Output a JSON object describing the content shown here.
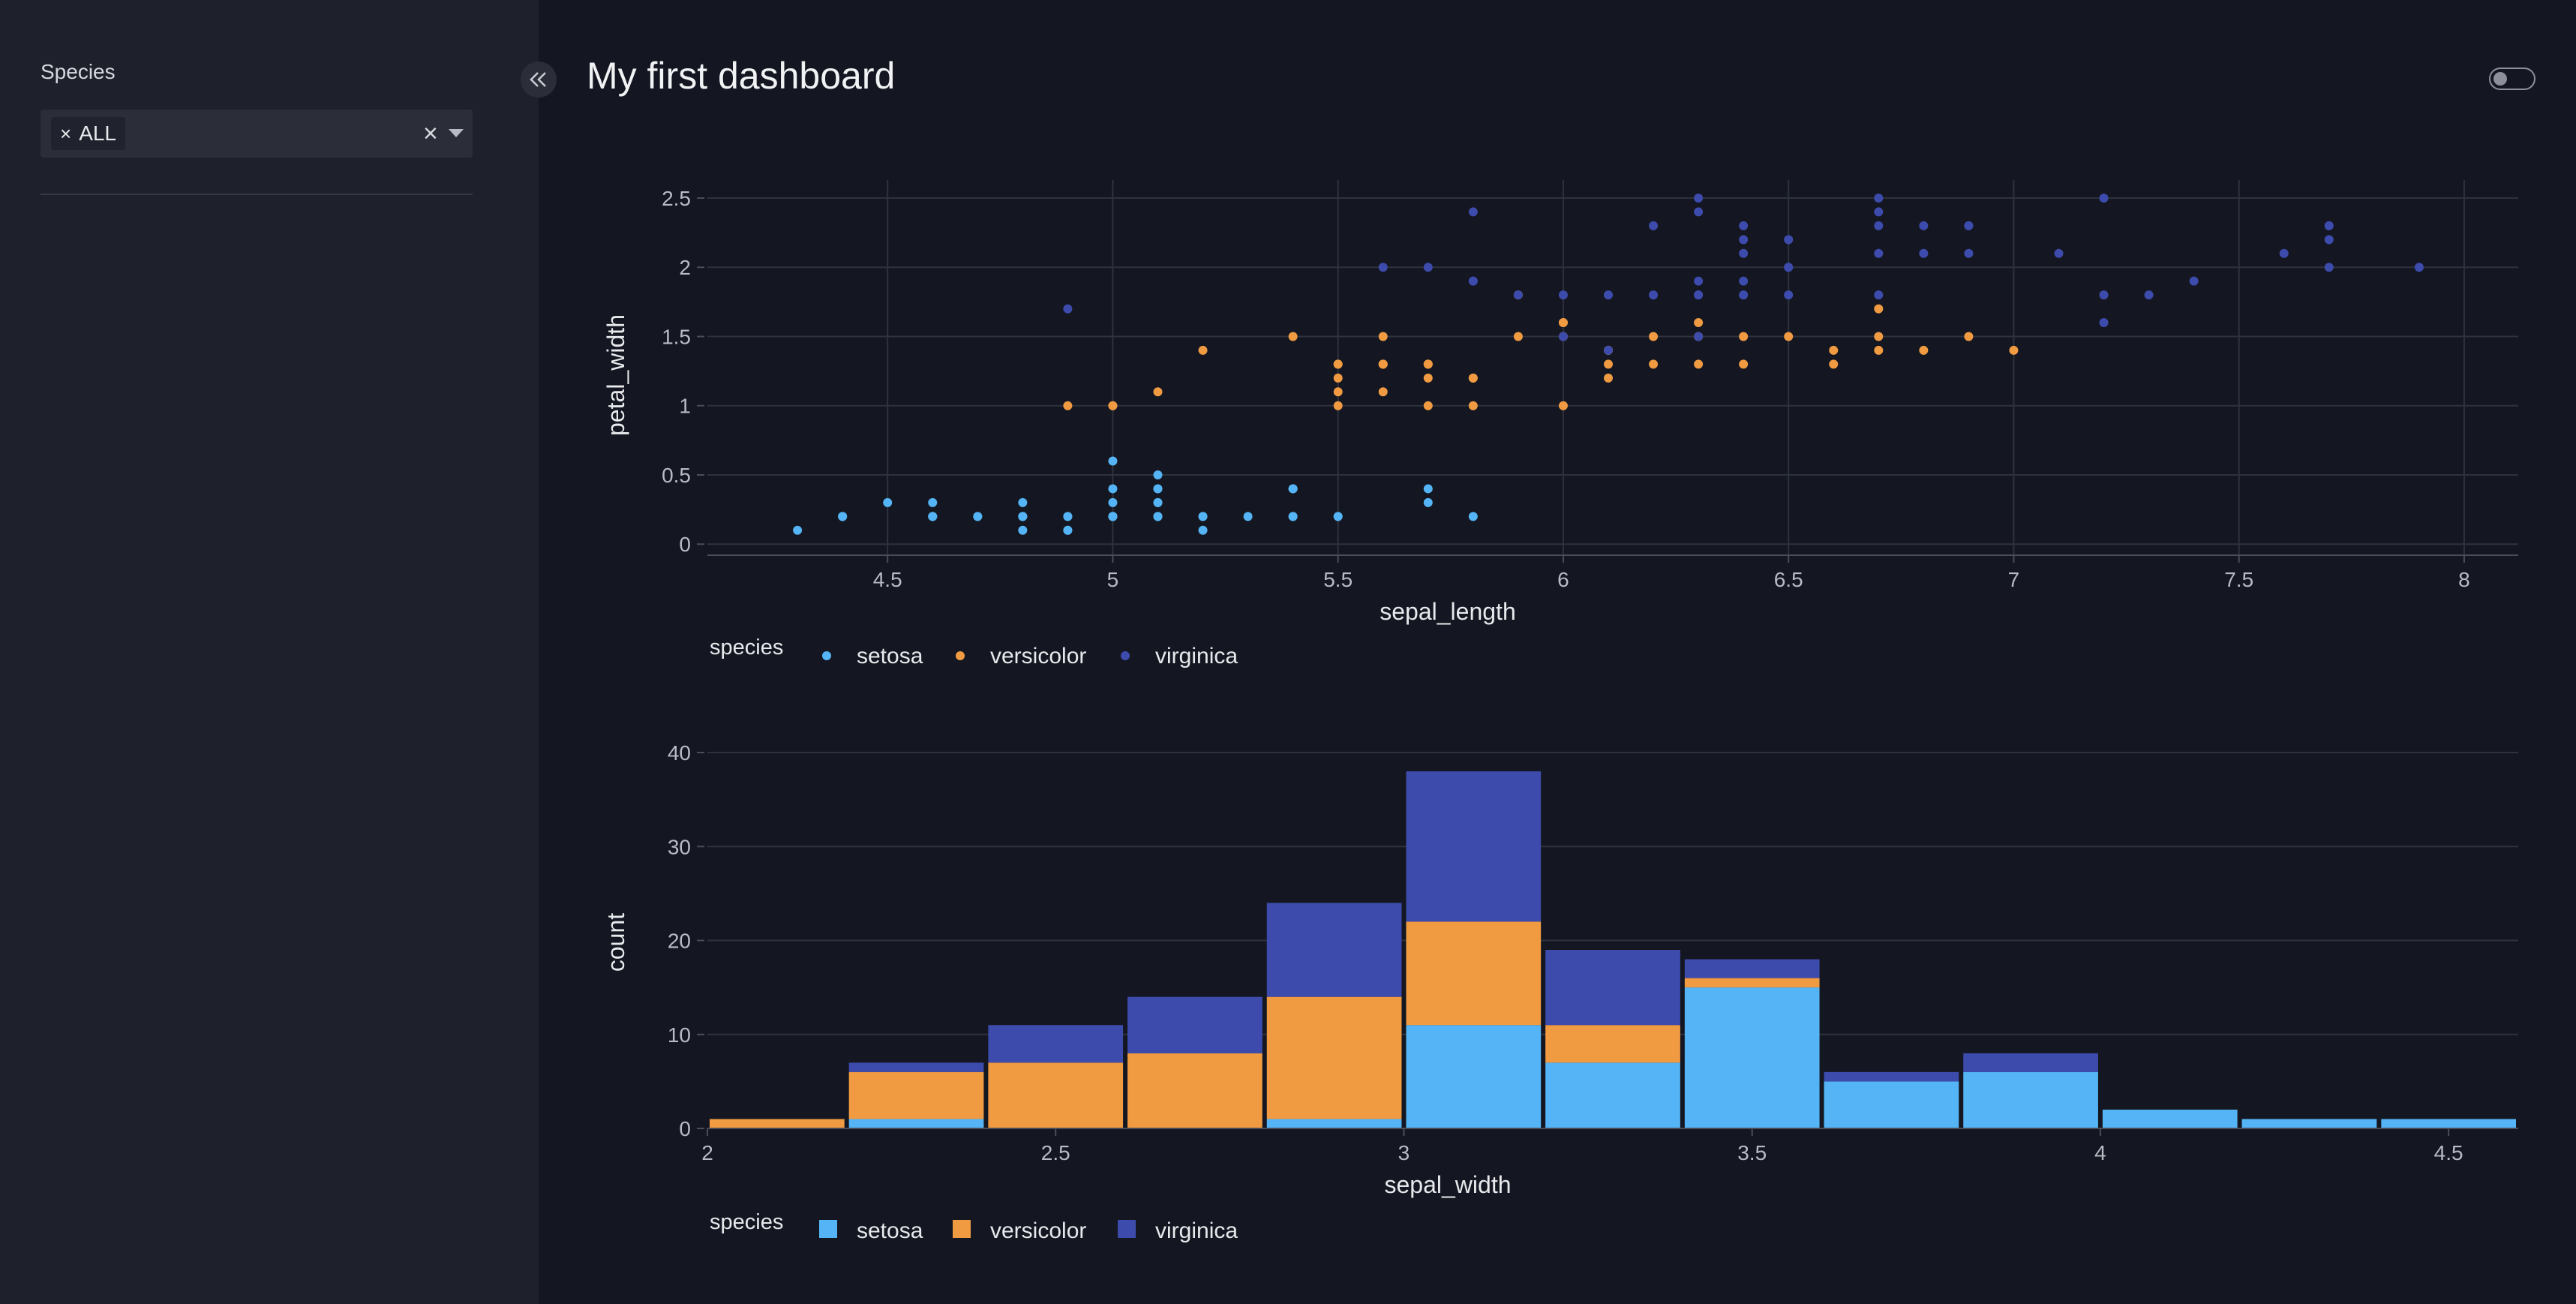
{
  "sidebar": {
    "filter_label": "Species",
    "selected_chip": "ALL",
    "chip_remove_icon": "close-icon",
    "clear_icon": "close-icon",
    "dropdown_icon": "chevron-down-icon",
    "collapse_icon": "double-chevron-left-icon"
  },
  "header": {
    "title": "My first dashboard",
    "toggle_icon": "toggle-switch"
  },
  "colors": {
    "background": "#141721",
    "sidebar": "#1e212c",
    "setosa": "#55b4f5",
    "versicolor": "#f09a42",
    "virginica": "#3d4bad"
  },
  "chart_data": [
    {
      "type": "scatter",
      "xlabel": "sepal_length",
      "ylabel": "petal_width",
      "xlim": [
        4.1,
        8.12
      ],
      "ylim": [
        -0.08,
        2.63
      ],
      "x_ticks": [
        "4.5",
        "5",
        "5.5",
        "6",
        "6.5",
        "7",
        "7.5",
        "8"
      ],
      "y_ticks": [
        "0",
        "0.5",
        "1",
        "1.5",
        "2",
        "2.5"
      ],
      "legend_title": "species",
      "legend_position": "bottom-left",
      "grid": true,
      "series": [
        {
          "name": "setosa",
          "points": [
            [
              5.1,
              0.2
            ],
            [
              4.9,
              0.2
            ],
            [
              4.7,
              0.2
            ],
            [
              4.6,
              0.2
            ],
            [
              5.0,
              0.2
            ],
            [
              5.4,
              0.4
            ],
            [
              4.6,
              0.3
            ],
            [
              5.0,
              0.2
            ],
            [
              4.4,
              0.2
            ],
            [
              4.9,
              0.1
            ],
            [
              5.4,
              0.2
            ],
            [
              4.8,
              0.2
            ],
            [
              4.8,
              0.1
            ],
            [
              4.3,
              0.1
            ],
            [
              5.8,
              0.2
            ],
            [
              5.7,
              0.4
            ],
            [
              5.4,
              0.4
            ],
            [
              5.1,
              0.3
            ],
            [
              5.7,
              0.3
            ],
            [
              5.1,
              0.3
            ],
            [
              5.4,
              0.2
            ],
            [
              5.1,
              0.4
            ],
            [
              4.6,
              0.2
            ],
            [
              5.1,
              0.5
            ],
            [
              4.8,
              0.2
            ],
            [
              5.0,
              0.2
            ],
            [
              5.0,
              0.4
            ],
            [
              5.2,
              0.2
            ],
            [
              5.2,
              0.2
            ],
            [
              4.7,
              0.2
            ],
            [
              4.8,
              0.2
            ],
            [
              5.4,
              0.4
            ],
            [
              5.2,
              0.1
            ],
            [
              5.5,
              0.2
            ],
            [
              4.9,
              0.2
            ],
            [
              5.0,
              0.2
            ],
            [
              5.5,
              0.2
            ],
            [
              4.9,
              0.1
            ],
            [
              4.4,
              0.2
            ],
            [
              5.1,
              0.2
            ],
            [
              5.0,
              0.3
            ],
            [
              4.5,
              0.3
            ],
            [
              4.4,
              0.2
            ],
            [
              5.0,
              0.6
            ],
            [
              5.1,
              0.4
            ],
            [
              4.8,
              0.3
            ],
            [
              5.1,
              0.2
            ],
            [
              4.6,
              0.2
            ],
            [
              5.3,
              0.2
            ],
            [
              5.0,
              0.2
            ]
          ]
        },
        {
          "name": "versicolor",
          "points": [
            [
              7.0,
              1.4
            ],
            [
              6.4,
              1.5
            ],
            [
              6.9,
              1.5
            ],
            [
              5.5,
              1.3
            ],
            [
              6.5,
              1.5
            ],
            [
              5.7,
              1.3
            ],
            [
              6.3,
              1.6
            ],
            [
              4.9,
              1.0
            ],
            [
              6.6,
              1.3
            ],
            [
              5.2,
              1.4
            ],
            [
              5.0,
              1.0
            ],
            [
              5.9,
              1.5
            ],
            [
              6.0,
              1.0
            ],
            [
              6.1,
              1.4
            ],
            [
              5.6,
              1.3
            ],
            [
              6.7,
              1.4
            ],
            [
              5.6,
              1.5
            ],
            [
              5.8,
              1.0
            ],
            [
              6.2,
              1.5
            ],
            [
              5.6,
              1.1
            ],
            [
              5.9,
              1.8
            ],
            [
              6.1,
              1.3
            ],
            [
              6.3,
              1.5
            ],
            [
              6.1,
              1.2
            ],
            [
              6.4,
              1.3
            ],
            [
              6.6,
              1.4
            ],
            [
              6.8,
              1.4
            ],
            [
              6.7,
              1.7
            ],
            [
              6.0,
              1.5
            ],
            [
              5.7,
              1.0
            ],
            [
              5.5,
              1.1
            ],
            [
              5.5,
              1.0
            ],
            [
              5.8,
              1.2
            ],
            [
              6.0,
              1.6
            ],
            [
              5.4,
              1.5
            ],
            [
              6.0,
              1.6
            ],
            [
              6.7,
              1.5
            ],
            [
              6.3,
              1.3
            ],
            [
              5.6,
              1.3
            ],
            [
              5.5,
              1.3
            ],
            [
              5.5,
              1.2
            ],
            [
              6.1,
              1.4
            ],
            [
              5.8,
              1.2
            ],
            [
              5.0,
              1.0
            ],
            [
              5.6,
              1.3
            ],
            [
              5.7,
              1.2
            ],
            [
              5.7,
              1.3
            ],
            [
              6.2,
              1.3
            ],
            [
              5.1,
              1.1
            ],
            [
              5.7,
              1.3
            ]
          ]
        },
        {
          "name": "virginica",
          "points": [
            [
              6.3,
              2.5
            ],
            [
              5.8,
              1.9
            ],
            [
              7.1,
              2.1
            ],
            [
              6.3,
              1.8
            ],
            [
              6.5,
              2.2
            ],
            [
              7.6,
              2.1
            ],
            [
              4.9,
              1.7
            ],
            [
              7.3,
              1.8
            ],
            [
              6.7,
              1.8
            ],
            [
              7.2,
              2.5
            ],
            [
              6.5,
              2.0
            ],
            [
              6.4,
              1.9
            ],
            [
              6.8,
              2.1
            ],
            [
              5.7,
              2.0
            ],
            [
              5.8,
              2.4
            ],
            [
              6.4,
              2.3
            ],
            [
              6.5,
              1.8
            ],
            [
              7.7,
              2.2
            ],
            [
              7.7,
              2.3
            ],
            [
              6.0,
              1.5
            ],
            [
              6.9,
              2.3
            ],
            [
              5.6,
              2.0
            ],
            [
              7.7,
              2.0
            ],
            [
              6.3,
              1.8
            ],
            [
              6.7,
              2.1
            ],
            [
              7.2,
              1.8
            ],
            [
              6.2,
              1.8
            ],
            [
              6.1,
              1.8
            ],
            [
              6.4,
              2.1
            ],
            [
              7.2,
              1.6
            ],
            [
              7.4,
              1.9
            ],
            [
              7.9,
              2.0
            ],
            [
              6.4,
              2.2
            ],
            [
              6.3,
              1.5
            ],
            [
              6.1,
              1.4
            ],
            [
              7.7,
              2.3
            ],
            [
              6.3,
              2.4
            ],
            [
              6.4,
              1.8
            ],
            [
              6.0,
              1.8
            ],
            [
              6.9,
              2.1
            ],
            [
              6.7,
              2.4
            ],
            [
              6.9,
              2.3
            ],
            [
              5.8,
              1.9
            ],
            [
              6.8,
              2.3
            ],
            [
              6.7,
              2.5
            ],
            [
              6.7,
              2.3
            ],
            [
              6.3,
              1.9
            ],
            [
              6.5,
              2.0
            ],
            [
              6.2,
              2.3
            ],
            [
              5.9,
              1.8
            ]
          ]
        }
      ]
    },
    {
      "type": "bar",
      "stacked": true,
      "xlabel": "sepal_width",
      "ylabel": "count",
      "bin_edges": [
        2.0,
        2.2,
        2.4,
        2.6,
        2.8,
        3.0,
        3.2,
        3.4,
        3.6,
        3.8,
        4.0,
        4.2,
        4.4,
        4.6
      ],
      "xlim": [
        2.0,
        4.6
      ],
      "ylim": [
        0,
        40
      ],
      "x_ticks": [
        "2",
        "2.5",
        "3",
        "3.5",
        "4",
        "4.5"
      ],
      "y_ticks": [
        "0",
        "10",
        "20",
        "30",
        "40"
      ],
      "legend_title": "species",
      "legend_position": "bottom-left",
      "grid": true,
      "series": [
        {
          "name": "setosa",
          "values": [
            0,
            1,
            0,
            0,
            1,
            11,
            7,
            15,
            5,
            6,
            2,
            1,
            1
          ]
        },
        {
          "name": "versicolor",
          "values": [
            1,
            5,
            7,
            8,
            13,
            11,
            4,
            1,
            0,
            0,
            0,
            0,
            0
          ]
        },
        {
          "name": "virginica",
          "values": [
            0,
            1,
            4,
            6,
            10,
            16,
            8,
            2,
            1,
            2,
            0,
            0,
            0
          ]
        }
      ]
    }
  ]
}
